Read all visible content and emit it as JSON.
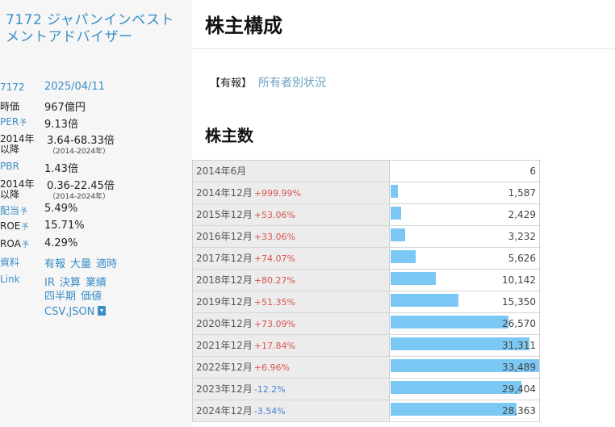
{
  "company": {
    "name": "7172 ジャパンインベストメントアドバイザー"
  },
  "info": {
    "code": "7172",
    "date": "2025/04/11",
    "market_cap_label": "時価",
    "market_cap": "967億円",
    "per_label": "PER",
    "per_mark": "予",
    "per": "9.13倍",
    "per_since_label_1": "2014年",
    "per_since_label_2": "以降",
    "per_range": "3.64-68.33倍",
    "per_range_period": "（2014-2024年）",
    "pbr_label": "PBR",
    "pbr": "1.43倍",
    "pbr_since_label_1": "2014年",
    "pbr_since_label_2": "以降",
    "pbr_range": "0.36-22.45倍",
    "pbr_range_period": "（2014-2024年）",
    "dividend_label": "配当",
    "dividend_mark": "予",
    "dividend": "5.49%",
    "roe_label": "ROE",
    "roe_mark": "予",
    "roe": "15.71%",
    "roa_label": "ROA",
    "roa_mark": "予",
    "roa": "4.29%",
    "docs_label": "資料",
    "docs": [
      "有報",
      "大量",
      "適時"
    ],
    "link_label": "Link",
    "links_row1": [
      "IR",
      "決算",
      "業績"
    ],
    "links_row2": [
      "四半期",
      "価値"
    ],
    "csv_label": "CSV,JSON"
  },
  "main": {
    "title": "株主構成",
    "report_tag": "【有報】",
    "report_link": "所有者別状況",
    "section_title": "株主数"
  },
  "colors": {
    "bar": "#7cc8f4",
    "accent": "#3a8ec6",
    "up": "#d9534f",
    "down": "#4a7fd4"
  },
  "shareholders": [
    {
      "period": "2014年6月",
      "change": "",
      "dir": "",
      "count": "6",
      "value": 6
    },
    {
      "period": "2014年12月",
      "change": "+999.99%",
      "dir": "up",
      "count": "1,587",
      "value": 1587
    },
    {
      "period": "2015年12月",
      "change": "+53.06%",
      "dir": "up",
      "count": "2,429",
      "value": 2429
    },
    {
      "period": "2016年12月",
      "change": "+33.06%",
      "dir": "up",
      "count": "3,232",
      "value": 3232
    },
    {
      "period": "2017年12月",
      "change": "+74.07%",
      "dir": "up",
      "count": "5,626",
      "value": 5626
    },
    {
      "period": "2018年12月",
      "change": "+80.27%",
      "dir": "up",
      "count": "10,142",
      "value": 10142
    },
    {
      "period": "2019年12月",
      "change": "+51.35%",
      "dir": "up",
      "count": "15,350",
      "value": 15350
    },
    {
      "period": "2020年12月",
      "change": "+73.09%",
      "dir": "up",
      "count": "26,570",
      "value": 26570
    },
    {
      "period": "2021年12月",
      "change": "+17.84%",
      "dir": "up",
      "count": "31,311",
      "value": 31311
    },
    {
      "period": "2022年12月",
      "change": "+6.96%",
      "dir": "up",
      "count": "33,489",
      "value": 33489
    },
    {
      "period": "2023年12月",
      "change": "-12.2%",
      "dir": "down",
      "count": "29,404",
      "value": 29404
    },
    {
      "period": "2024年12月",
      "change": "-3.54%",
      "dir": "down",
      "count": "28,363",
      "value": 28363
    }
  ]
}
